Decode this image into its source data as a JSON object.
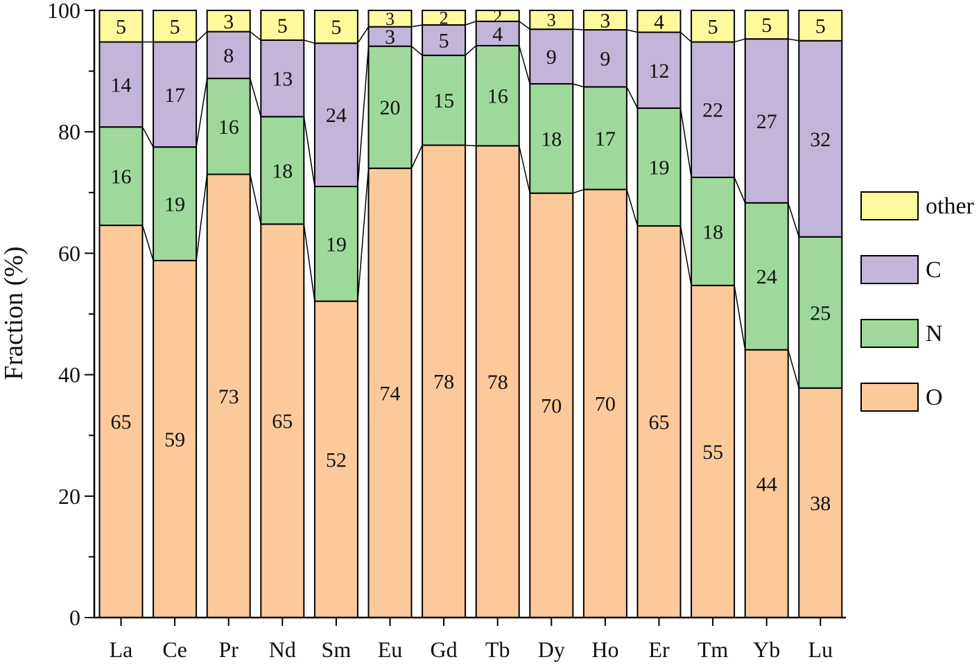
{
  "chart_data": {
    "type": "bar",
    "stacked": true,
    "connector_lines": true,
    "categories": [
      "La",
      "Ce",
      "Pr",
      "Nd",
      "Sm",
      "Eu",
      "Gd",
      "Tb",
      "Dy",
      "Ho",
      "Er",
      "Tm",
      "Yb",
      "Lu"
    ],
    "series": [
      {
        "name": "O",
        "color": "#fcc99b",
        "values": [
          64.6,
          58.8,
          73.0,
          64.8,
          52.1,
          74.0,
          77.8,
          77.7,
          69.9,
          70.5,
          64.5,
          54.7,
          44.1,
          37.8
        ],
        "labels": [
          "65",
          "59",
          "73",
          "65",
          "52",
          "74",
          "78",
          "78",
          "70",
          "70",
          "65",
          "55",
          "44",
          "38"
        ]
      },
      {
        "name": "N",
        "color": "#9ed99b",
        "values": [
          16.2,
          18.7,
          15.8,
          17.7,
          18.9,
          20.1,
          14.8,
          16.5,
          18.0,
          16.9,
          19.4,
          17.8,
          24.2,
          24.9
        ],
        "labels": [
          "16",
          "19",
          "16",
          "18",
          "19",
          "20",
          "15",
          "16",
          "18",
          "17",
          "19",
          "18",
          "24",
          "25"
        ]
      },
      {
        "name": "C",
        "color": "#c3b5d9",
        "values": [
          14.0,
          17.3,
          7.7,
          12.6,
          23.6,
          3.2,
          5.0,
          4.0,
          9.0,
          9.4,
          12.5,
          22.3,
          27.0,
          32.3
        ],
        "labels": [
          "14",
          "17",
          "8",
          "13",
          "24",
          "3",
          "5",
          "4",
          "9",
          "9",
          "12",
          "22",
          "27",
          "32"
        ]
      },
      {
        "name": "other",
        "color": "#fdfa9e",
        "values": [
          5.2,
          5.2,
          3.5,
          4.9,
          5.4,
          2.7,
          2.4,
          1.8,
          3.1,
          3.2,
          3.6,
          5.2,
          4.7,
          5.0
        ],
        "labels": [
          "5",
          "5",
          "3",
          "5",
          "5",
          "3",
          "2",
          "2",
          "3",
          "3",
          "4",
          "5",
          "5",
          "5"
        ]
      }
    ],
    "ylabel": "Fraction (%)",
    "xlabel": "",
    "ylim": [
      0,
      100
    ],
    "yticks": [
      "0",
      "20",
      "40",
      "60",
      "80",
      "100"
    ],
    "grid": false,
    "legend": {
      "position": "right",
      "order": [
        "other",
        "C",
        "N",
        "O"
      ]
    }
  }
}
